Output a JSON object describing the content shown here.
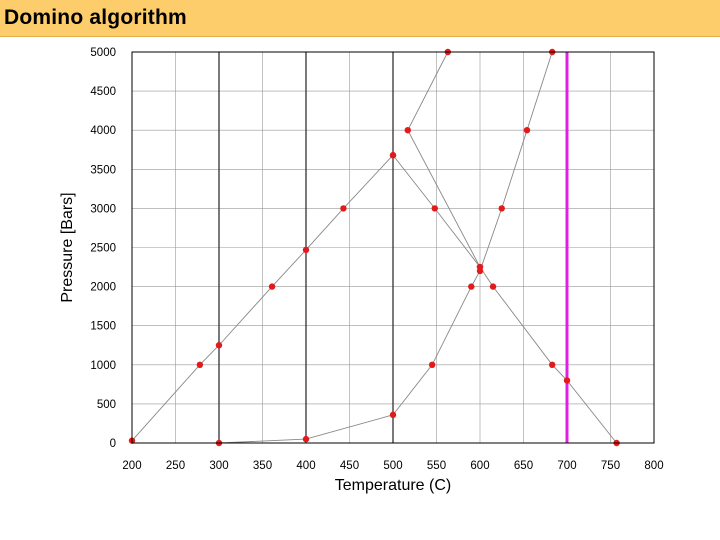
{
  "slide": {
    "title": "Domino algorithm"
  },
  "colors": {
    "title_bar": "#fccd6a",
    "point": "#e31a1c",
    "highlight": "#e020e0",
    "curve": "#888888",
    "grid": "#999999",
    "isotherm": "#333333"
  },
  "chart_data": {
    "type": "scatter",
    "title": "",
    "xlabel": "Temperature (C)",
    "ylabel": "Pressure [Bars]",
    "xlim": [
      200,
      800
    ],
    "ylim": [
      0,
      5000
    ],
    "xticks": [
      200,
      250,
      300,
      350,
      400,
      450,
      500,
      550,
      600,
      650,
      700,
      750,
      800
    ],
    "yticks": [
      0,
      500,
      1000,
      1500,
      2000,
      2500,
      3000,
      3500,
      4000,
      4500,
      5000
    ],
    "grid": true,
    "vertical_lines": [
      {
        "x": 300,
        "style": "isotherm"
      },
      {
        "x": 400,
        "style": "isotherm"
      },
      {
        "x": 500,
        "style": "isotherm"
      },
      {
        "x": 700,
        "style": "highlight"
      }
    ],
    "series": [
      {
        "points": [
          [
            200,
            30
          ],
          [
            278,
            1000
          ],
          [
            300,
            1250
          ],
          [
            361,
            2000
          ],
          [
            400,
            2470
          ],
          [
            443,
            3000
          ],
          [
            500,
            3680
          ]
        ]
      },
      {
        "points": [
          [
            500,
            3680
          ],
          [
            548,
            3000
          ],
          [
            600,
            2250
          ],
          [
            615,
            2000
          ],
          [
            683,
            1000
          ],
          [
            700,
            800
          ],
          [
            757,
            0
          ]
        ]
      },
      {
        "points": [
          [
            300,
            0
          ],
          [
            400,
            50
          ],
          [
            500,
            360
          ],
          [
            545,
            1000
          ],
          [
            590,
            2000
          ],
          [
            600,
            2200
          ],
          [
            625,
            3000
          ],
          [
            654,
            4000
          ],
          [
            683,
            5000
          ]
        ]
      },
      {
        "points": [
          [
            600,
            2250
          ],
          [
            517,
            4000
          ],
          [
            563,
            5000
          ]
        ]
      }
    ]
  }
}
